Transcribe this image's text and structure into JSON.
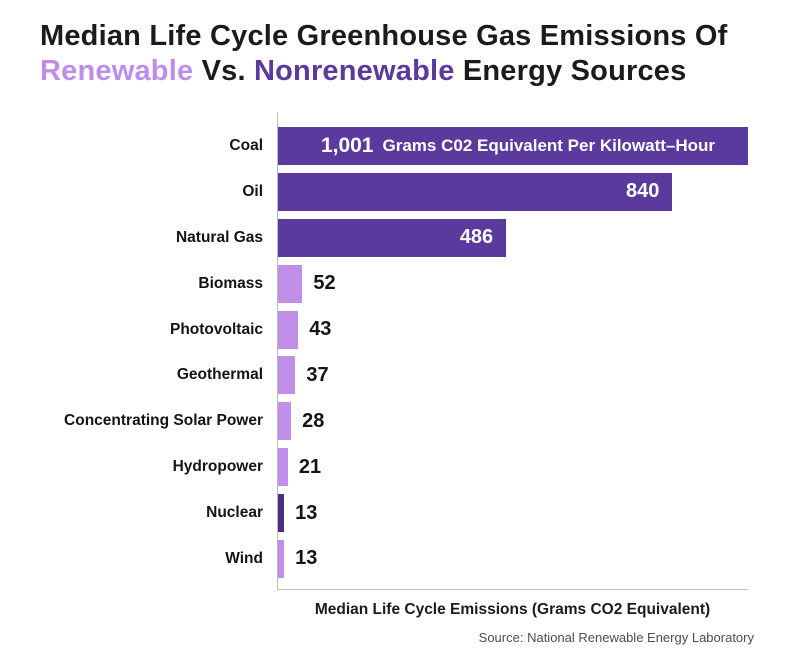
{
  "title": {
    "line1": "Median Life Cycle Greenhouse Gas Emissions Of",
    "line2_renewable": "Renewable",
    "line2_vs": " Vs. ",
    "line2_nonrenewable": "Nonrenewable",
    "line2_rest": " Energy Sources"
  },
  "colors": {
    "nonrenewable_bar": "#5b3a9e",
    "renewable_bar": "#c18fe8",
    "nuclear_bar": "#4b2d83",
    "title_renewable": "#bd8de9",
    "title_nonrenewable": "#5b3a9e",
    "axis_line": "#bbbbbb",
    "source_text": "#4d4d4d"
  },
  "chart_data": {
    "type": "bar",
    "orientation": "horizontal",
    "title": "Median Life Cycle Greenhouse Gas Emissions Of Renewable Vs. Nonrenewable Energy Sources",
    "xlabel": "Median Life Cycle Emissions (Grams CO2 Equivalent)",
    "xlim": [
      0,
      1001
    ],
    "grid": false,
    "legend": "none",
    "bars": [
      {
        "label": "Coal",
        "value": 1001,
        "display": "1,001",
        "unit_suffix": "Grams C02 Equivalent Per Kilowatt–Hour",
        "group": "nonrenewable",
        "color": "nonrenewable_bar",
        "value_label_position": "inside-center"
      },
      {
        "label": "Oil",
        "value": 840,
        "display": "840",
        "unit_suffix": "",
        "group": "nonrenewable",
        "color": "nonrenewable_bar",
        "value_label_position": "inside-right"
      },
      {
        "label": "Natural Gas",
        "value": 486,
        "display": "486",
        "unit_suffix": "",
        "group": "nonrenewable",
        "color": "nonrenewable_bar",
        "value_label_position": "inside-right"
      },
      {
        "label": "Biomass",
        "value": 52,
        "display": "52",
        "unit_suffix": "",
        "group": "renewable",
        "color": "renewable_bar",
        "value_label_position": "outside"
      },
      {
        "label": "Photovoltaic",
        "value": 43,
        "display": "43",
        "unit_suffix": "",
        "group": "renewable",
        "color": "renewable_bar",
        "value_label_position": "outside"
      },
      {
        "label": "Geothermal",
        "value": 37,
        "display": "37",
        "unit_suffix": "",
        "group": "renewable",
        "color": "renewable_bar",
        "value_label_position": "outside"
      },
      {
        "label": "Concentrating Solar Power",
        "value": 28,
        "display": "28",
        "unit_suffix": "",
        "group": "renewable",
        "color": "renewable_bar",
        "value_label_position": "outside"
      },
      {
        "label": "Hydropower",
        "value": 21,
        "display": "21",
        "unit_suffix": "",
        "group": "renewable",
        "color": "renewable_bar",
        "value_label_position": "outside"
      },
      {
        "label": "Nuclear",
        "value": 13,
        "display": "13",
        "unit_suffix": "",
        "group": "nonrenewable",
        "color": "nuclear_bar",
        "value_label_position": "outside"
      },
      {
        "label": "Wind",
        "value": 13,
        "display": "13",
        "unit_suffix": "",
        "group": "renewable",
        "color": "renewable_bar",
        "value_label_position": "outside"
      }
    ]
  },
  "source": "Source: National Renewable Energy Laboratory"
}
